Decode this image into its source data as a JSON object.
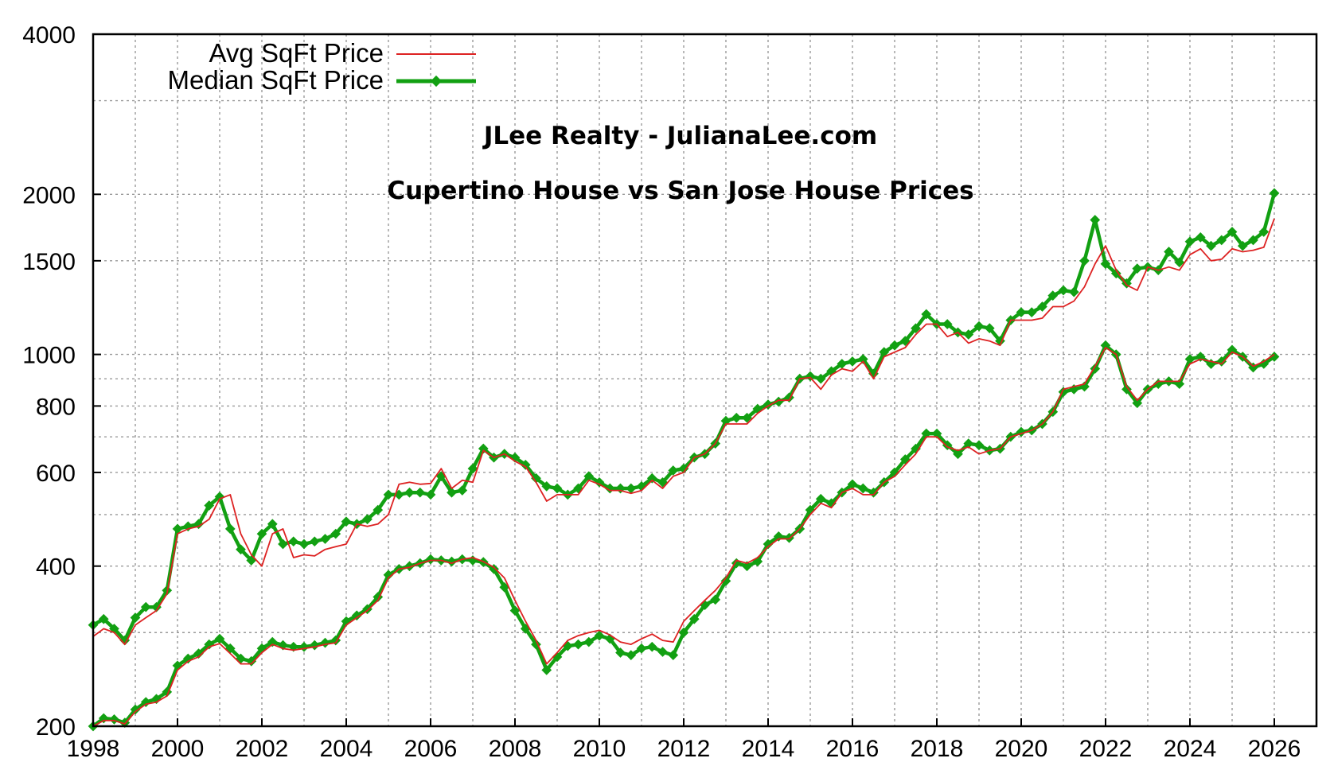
{
  "chart_data": {
    "type": "line",
    "title": "JLee Realty - JulianaLee.com",
    "subtitle": "Cupertino House vs San Jose House Prices",
    "xlabel": "",
    "ylabel": "",
    "xlim": [
      1998,
      2027
    ],
    "ylim": [
      200,
      4000
    ],
    "y_scale": "log",
    "grid": true,
    "legend_position": "top-left",
    "x_ticks": [
      "1998",
      "2000",
      "2002",
      "2004",
      "2006",
      "2008",
      "2010",
      "2012",
      "2014",
      "2016",
      "2018",
      "2020",
      "2022",
      "2024",
      "2026"
    ],
    "y_ticks": [
      "200",
      "400",
      "600",
      "800",
      "1000",
      "1500",
      "2000",
      "4000"
    ],
    "legend": {
      "avg_label": "Avg SqFt Price",
      "median_label": "Median SqFt Price"
    },
    "colors": {
      "avg": "#dd2222",
      "median": "#12a012"
    },
    "series": [
      {
        "name": "Avg SqFt Price",
        "group": "Cupertino",
        "style": "thin-line",
        "x": [
          1998.0,
          1998.25,
          1998.5,
          1998.75,
          1999.0,
          1999.25,
          1999.5,
          1999.75,
          2000.0,
          2000.25,
          2000.5,
          2000.75,
          2001.0,
          2001.25,
          2001.5,
          2001.75,
          2002.0,
          2002.25,
          2002.5,
          2002.75,
          2003.0,
          2003.25,
          2003.5,
          2003.75,
          2004.0,
          2004.25,
          2004.5,
          2004.75,
          2005.0,
          2005.25,
          2005.5,
          2005.75,
          2006.0,
          2006.25,
          2006.5,
          2006.75,
          2007.0,
          2007.25,
          2007.5,
          2007.75,
          2008.0,
          2008.25,
          2008.5,
          2008.75,
          2009.0,
          2009.25,
          2009.5,
          2009.75,
          2010.0,
          2010.25,
          2010.5,
          2010.75,
          2011.0,
          2011.25,
          2011.5,
          2011.75,
          2012.0,
          2012.25,
          2012.5,
          2012.75,
          2013.0,
          2013.25,
          2013.5,
          2013.75,
          2014.0,
          2014.25,
          2014.5,
          2014.75,
          2015.0,
          2015.25,
          2015.5,
          2015.75,
          2016.0,
          2016.25,
          2016.5,
          2016.75,
          2017.0,
          2017.25,
          2017.5,
          2017.75,
          2018.0,
          2018.25,
          2018.5,
          2018.75,
          2019.0,
          2019.25,
          2019.5,
          2019.75,
          2020.0,
          2020.25,
          2020.5,
          2020.75,
          2021.0,
          2021.25,
          2021.5,
          2021.75,
          2022.0,
          2022.25,
          2022.5,
          2022.75,
          2023.0,
          2023.25,
          2023.5,
          2023.75,
          2024.0,
          2024.25,
          2024.5,
          2024.75,
          2025.0,
          2025.25,
          2025.5,
          2025.75,
          2026.0
        ],
        "y": [
          295,
          305,
          300,
          285,
          310,
          320,
          330,
          355,
          460,
          470,
          475,
          490,
          535,
          545,
          460,
          420,
          400,
          460,
          470,
          415,
          420,
          418,
          430,
          435,
          440,
          480,
          475,
          480,
          500,
          570,
          575,
          570,
          572,
          610,
          560,
          580,
          575,
          660,
          640,
          650,
          630,
          615,
          575,
          530,
          545,
          545,
          545,
          580,
          570,
          555,
          555,
          548,
          555,
          580,
          560,
          590,
          600,
          640,
          650,
          680,
          740,
          740,
          740,
          775,
          800,
          820,
          820,
          900,
          905,
          860,
          915,
          940,
          930,
          970,
          900,
          990,
          1010,
          1030,
          1090,
          1140,
          1140,
          1080,
          1100,
          1050,
          1070,
          1060,
          1040,
          1160,
          1160,
          1160,
          1170,
          1230,
          1230,
          1260,
          1340,
          1480,
          1600,
          1440,
          1350,
          1320,
          1460,
          1440,
          1460,
          1440,
          1540,
          1580,
          1500,
          1510,
          1580,
          1560,
          1570,
          1590,
          1800
        ]
      },
      {
        "name": "Median SqFt Price",
        "group": "Cupertino",
        "style": "thick-line-markers",
        "x": [
          1998.0,
          1998.25,
          1998.5,
          1998.75,
          1999.0,
          1999.25,
          1999.5,
          1999.75,
          2000.0,
          2000.25,
          2000.5,
          2000.75,
          2001.0,
          2001.25,
          2001.5,
          2001.75,
          2002.0,
          2002.25,
          2002.5,
          2002.75,
          2003.0,
          2003.25,
          2003.5,
          2003.75,
          2004.0,
          2004.25,
          2004.5,
          2004.75,
          2005.0,
          2005.25,
          2005.5,
          2005.75,
          2006.0,
          2006.25,
          2006.5,
          2006.75,
          2007.0,
          2007.25,
          2007.5,
          2007.75,
          2008.0,
          2008.25,
          2008.5,
          2008.75,
          2009.0,
          2009.25,
          2009.5,
          2009.75,
          2010.0,
          2010.25,
          2010.5,
          2010.75,
          2011.0,
          2011.25,
          2011.5,
          2011.75,
          2012.0,
          2012.25,
          2012.5,
          2012.75,
          2013.0,
          2013.25,
          2013.5,
          2013.75,
          2014.0,
          2014.25,
          2014.5,
          2014.75,
          2015.0,
          2015.25,
          2015.5,
          2015.75,
          2016.0,
          2016.25,
          2016.5,
          2016.75,
          2017.0,
          2017.25,
          2017.5,
          2017.75,
          2018.0,
          2018.25,
          2018.5,
          2018.75,
          2019.0,
          2019.25,
          2019.5,
          2019.75,
          2020.0,
          2020.25,
          2020.5,
          2020.75,
          2021.0,
          2021.25,
          2021.5,
          2021.75,
          2022.0,
          2022.25,
          2022.5,
          2022.75,
          2023.0,
          2023.25,
          2023.5,
          2023.75,
          2024.0,
          2024.25,
          2024.5,
          2024.75,
          2025.0,
          2025.25,
          2025.5,
          2025.75,
          2026.0
        ],
        "y": [
          310,
          318,
          305,
          290,
          320,
          335,
          335,
          360,
          470,
          475,
          480,
          520,
          540,
          470,
          430,
          410,
          460,
          480,
          440,
          445,
          440,
          445,
          450,
          460,
          485,
          480,
          490,
          510,
          545,
          545,
          550,
          550,
          545,
          590,
          550,
          555,
          610,
          665,
          640,
          650,
          640,
          620,
          585,
          565,
          560,
          545,
          560,
          590,
          575,
          560,
          560,
          560,
          565,
          585,
          575,
          605,
          610,
          640,
          650,
          680,
          750,
          760,
          760,
          790,
          805,
          815,
          830,
          900,
          910,
          900,
          930,
          960,
          970,
          980,
          920,
          1010,
          1040,
          1060,
          1120,
          1190,
          1140,
          1140,
          1100,
          1090,
          1130,
          1120,
          1060,
          1160,
          1200,
          1200,
          1230,
          1290,
          1320,
          1310,
          1500,
          1790,
          1480,
          1420,
          1360,
          1450,
          1460,
          1440,
          1560,
          1490,
          1630,
          1660,
          1600,
          1640,
          1700,
          1600,
          1640,
          1700,
          2010
        ]
      },
      {
        "name": "Avg SqFt Price",
        "group": "San Jose",
        "style": "thin-line",
        "x": [
          1998.0,
          1998.25,
          1998.5,
          1998.75,
          1999.0,
          1999.25,
          1999.5,
          1999.75,
          2000.0,
          2000.25,
          2000.5,
          2000.75,
          2001.0,
          2001.25,
          2001.5,
          2001.75,
          2002.0,
          2002.25,
          2002.5,
          2002.75,
          2003.0,
          2003.25,
          2003.5,
          2003.75,
          2004.0,
          2004.25,
          2004.5,
          2004.75,
          2005.0,
          2005.25,
          2005.5,
          2005.75,
          2006.0,
          2006.25,
          2006.5,
          2006.75,
          2007.0,
          2007.25,
          2007.5,
          2007.75,
          2008.0,
          2008.25,
          2008.5,
          2008.75,
          2009.0,
          2009.25,
          2009.5,
          2009.75,
          2010.0,
          2010.25,
          2010.5,
          2010.75,
          2011.0,
          2011.25,
          2011.5,
          2011.75,
          2012.0,
          2012.25,
          2012.5,
          2012.75,
          2013.0,
          2013.25,
          2013.5,
          2013.75,
          2014.0,
          2014.25,
          2014.5,
          2014.75,
          2015.0,
          2015.25,
          2015.5,
          2015.75,
          2016.0,
          2016.25,
          2016.5,
          2016.75,
          2017.0,
          2017.25,
          2017.5,
          2017.75,
          2018.0,
          2018.25,
          2018.5,
          2018.75,
          2019.0,
          2019.25,
          2019.5,
          2019.75,
          2020.0,
          2020.25,
          2020.5,
          2020.75,
          2021.0,
          2021.25,
          2021.5,
          2021.75,
          2022.0,
          2022.25,
          2022.5,
          2022.75,
          2023.0,
          2023.25,
          2023.5,
          2023.75,
          2024.0,
          2024.25,
          2024.5,
          2024.75,
          2025.0,
          2025.25,
          2025.5,
          2025.75,
          2026.0
        ],
        "y": [
          200,
          205,
          205,
          202,
          213,
          220,
          222,
          228,
          255,
          265,
          270,
          282,
          286,
          274,
          262,
          262,
          275,
          285,
          280,
          278,
          280,
          282,
          285,
          287,
          310,
          320,
          330,
          345,
          380,
          395,
          398,
          405,
          410,
          410,
          405,
          412,
          415,
          408,
          398,
          380,
          345,
          315,
          290,
          262,
          275,
          290,
          296,
          300,
          303,
          297,
          288,
          285,
          292,
          298,
          290,
          288,
          315,
          330,
          345,
          360,
          380,
          410,
          405,
          415,
          435,
          450,
          450,
          470,
          500,
          525,
          515,
          550,
          560,
          545,
          545,
          575,
          590,
          620,
          650,
          700,
          700,
          670,
          660,
          670,
          650,
          660,
          665,
          700,
          710,
          720,
          740,
          780,
          860,
          870,
          880,
          950,
          1030,
          1000,
          870,
          820,
          860,
          890,
          890,
          890,
          960,
          980,
          970,
          960,
          1010,
          990,
          950,
          970,
          1000
        ]
      },
      {
        "name": "Median SqFt Price",
        "group": "San Jose",
        "style": "thick-line-markers",
        "x": [
          1998.0,
          1998.25,
          1998.5,
          1998.75,
          1999.0,
          1999.25,
          1999.5,
          1999.75,
          2000.0,
          2000.25,
          2000.5,
          2000.75,
          2001.0,
          2001.25,
          2001.5,
          2001.75,
          2002.0,
          2002.25,
          2002.5,
          2002.75,
          2003.0,
          2003.25,
          2003.5,
          2003.75,
          2004.0,
          2004.25,
          2004.5,
          2004.75,
          2005.0,
          2005.25,
          2005.5,
          2005.75,
          2006.0,
          2006.25,
          2006.5,
          2006.75,
          2007.0,
          2007.25,
          2007.5,
          2007.75,
          2008.0,
          2008.25,
          2008.5,
          2008.75,
          2009.0,
          2009.25,
          2009.5,
          2009.75,
          2010.0,
          2010.25,
          2010.5,
          2010.75,
          2011.0,
          2011.25,
          2011.5,
          2011.75,
          2012.0,
          2012.25,
          2012.5,
          2012.75,
          2013.0,
          2013.25,
          2013.5,
          2013.75,
          2014.0,
          2014.25,
          2014.5,
          2014.75,
          2015.0,
          2015.25,
          2015.5,
          2015.75,
          2016.0,
          2016.25,
          2016.5,
          2016.75,
          2017.0,
          2017.25,
          2017.5,
          2017.75,
          2018.0,
          2018.25,
          2018.5,
          2018.75,
          2019.0,
          2019.25,
          2019.5,
          2019.75,
          2020.0,
          2020.25,
          2020.5,
          2020.75,
          2021.0,
          2021.25,
          2021.5,
          2021.75,
          2022.0,
          2022.25,
          2022.5,
          2022.75,
          2023.0,
          2023.25,
          2023.5,
          2023.75,
          2024.0,
          2024.25,
          2024.5,
          2024.75,
          2025.0,
          2025.25,
          2025.5,
          2025.75,
          2026.0
        ],
        "y": [
          200,
          207,
          206,
          203,
          215,
          222,
          225,
          232,
          260,
          268,
          274,
          285,
          292,
          280,
          268,
          265,
          280,
          288,
          284,
          282,
          282,
          284,
          287,
          290,
          315,
          323,
          332,
          350,
          385,
          395,
          400,
          405,
          412,
          410,
          408,
          412,
          410,
          407,
          395,
          365,
          330,
          305,
          285,
          255,
          270,
          283,
          285,
          288,
          296,
          292,
          275,
          272,
          280,
          282,
          276,
          272,
          300,
          318,
          338,
          346,
          375,
          405,
          400,
          408,
          440,
          455,
          452,
          470,
          510,
          535,
          525,
          550,
          570,
          560,
          550,
          575,
          600,
          635,
          665,
          710,
          710,
          675,
          650,
          680,
          675,
          660,
          665,
          700,
          715,
          720,
          740,
          780,
          850,
          860,
          870,
          940,
          1040,
          1000,
          860,
          810,
          860,
          880,
          890,
          880,
          980,
          990,
          960,
          970,
          1020,
          990,
          945,
          960,
          990
        ]
      }
    ]
  }
}
